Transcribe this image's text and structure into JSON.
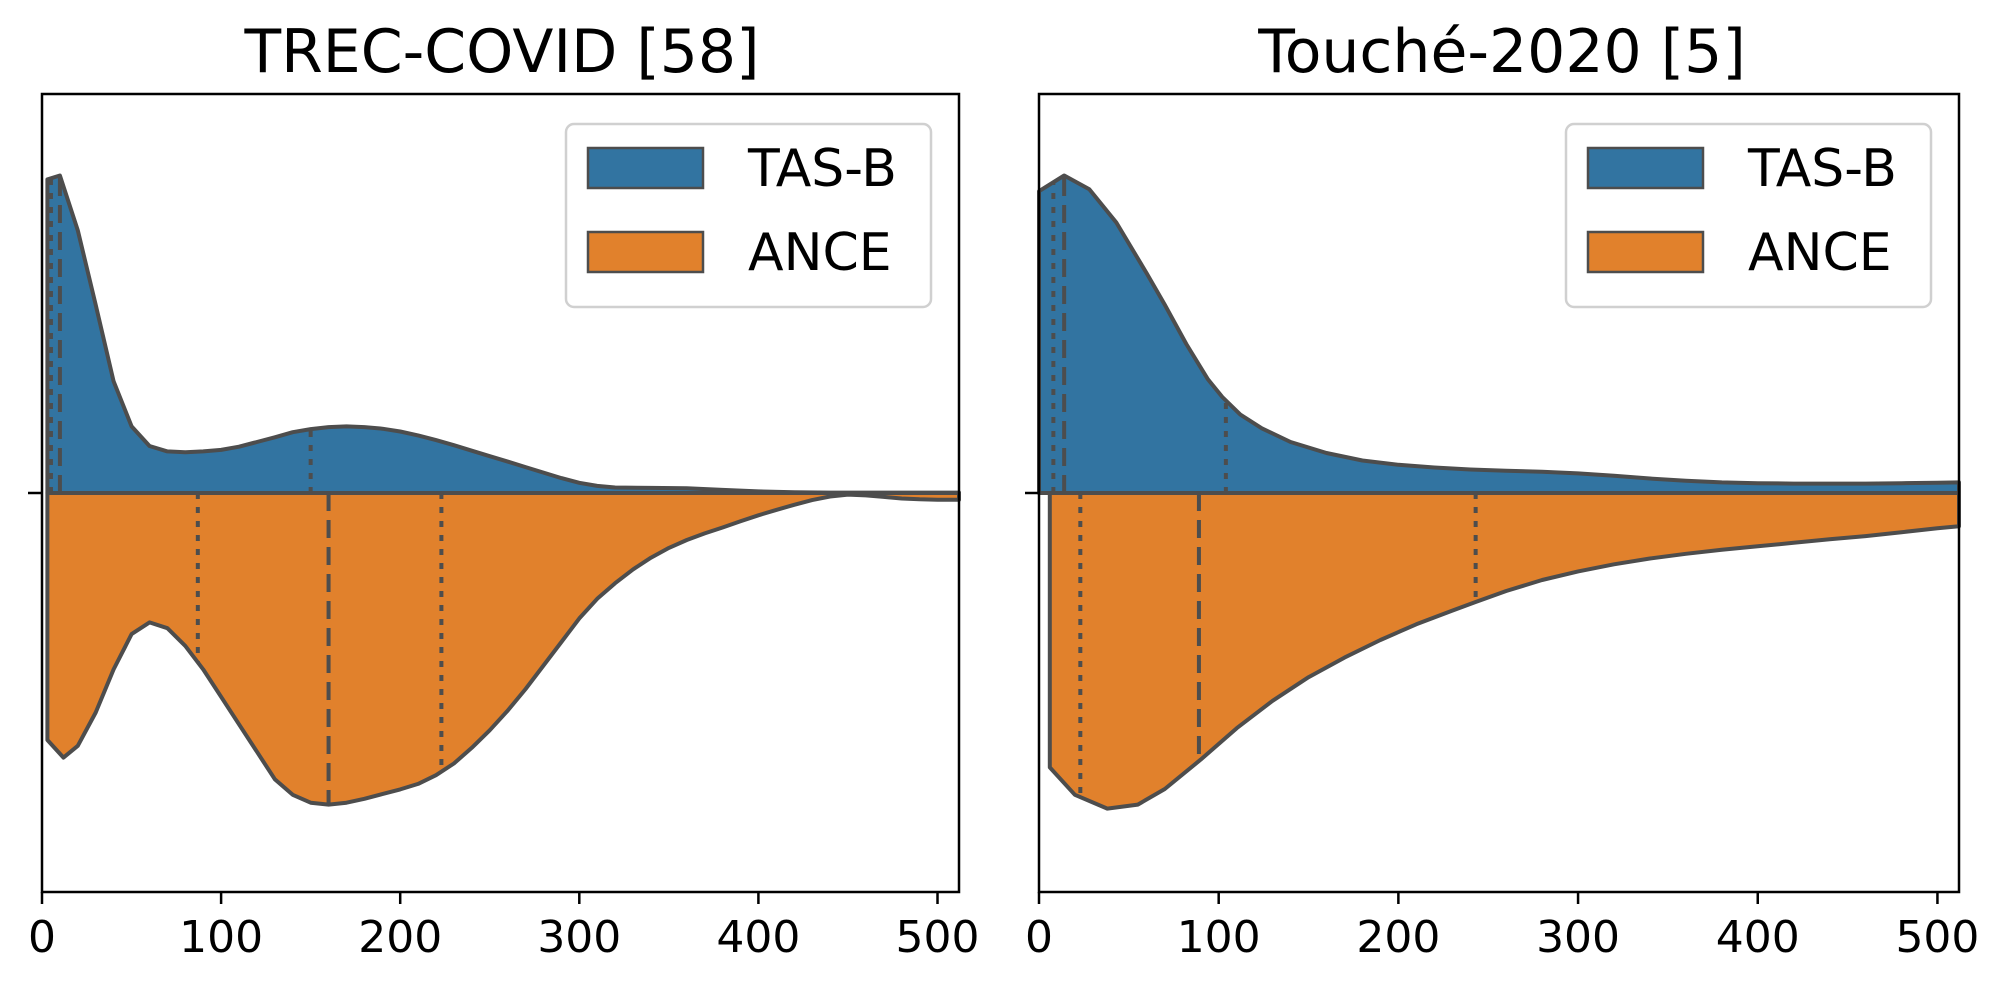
{
  "chart_data": [
    {
      "type": "violin",
      "title": "TREC-COVID [58]",
      "xlabel": "",
      "ylabel": "",
      "xlim": [
        0,
        512
      ],
      "xticks": [
        0,
        100,
        200,
        300,
        400,
        500
      ],
      "legend": {
        "placement": "top-right",
        "entries": [
          "TAS-B",
          "ANCE"
        ]
      },
      "series": [
        {
          "name": "TAS-B",
          "side": "upper",
          "color": "#3274a1",
          "density": [
            [
              3,
              0.8
            ],
            [
              10,
              0.81
            ],
            [
              20,
              0.67
            ],
            [
              30,
              0.48
            ],
            [
              40,
              0.285
            ],
            [
              50,
              0.17
            ],
            [
              60,
              0.12
            ],
            [
              70,
              0.106
            ],
            [
              80,
              0.104
            ],
            [
              90,
              0.106
            ],
            [
              100,
              0.11
            ],
            [
              110,
              0.118
            ],
            [
              120,
              0.13
            ],
            [
              130,
              0.142
            ],
            [
              140,
              0.155
            ],
            [
              150,
              0.163
            ],
            [
              160,
              0.168
            ],
            [
              170,
              0.17
            ],
            [
              180,
              0.168
            ],
            [
              190,
              0.164
            ],
            [
              200,
              0.157
            ],
            [
              210,
              0.147
            ],
            [
              220,
              0.135
            ],
            [
              230,
              0.122
            ],
            [
              240,
              0.108
            ],
            [
              250,
              0.094
            ],
            [
              260,
              0.08
            ],
            [
              270,
              0.066
            ],
            [
              280,
              0.052
            ],
            [
              290,
              0.038
            ],
            [
              300,
              0.026
            ],
            [
              310,
              0.018
            ],
            [
              320,
              0.014
            ],
            [
              340,
              0.013
            ],
            [
              360,
              0.012
            ],
            [
              380,
              0.008
            ],
            [
              400,
              0.004
            ],
            [
              420,
              0.002
            ],
            [
              440,
              0.001
            ],
            [
              460,
              0.001
            ],
            [
              480,
              0.001
            ],
            [
              500,
              0.001
            ],
            [
              512,
              0.001
            ]
          ],
          "quartiles": [
            5,
            10,
            150
          ]
        },
        {
          "name": "ANCE",
          "side": "lower",
          "color": "#e1812c",
          "density": [
            [
              3,
              0.63
            ],
            [
              12,
              0.675
            ],
            [
              20,
              0.645
            ],
            [
              30,
              0.56
            ],
            [
              40,
              0.45
            ],
            [
              50,
              0.36
            ],
            [
              60,
              0.33
            ],
            [
              70,
              0.345
            ],
            [
              80,
              0.39
            ],
            [
              90,
              0.45
            ],
            [
              100,
              0.52
            ],
            [
              110,
              0.59
            ],
            [
              120,
              0.66
            ],
            [
              130,
              0.73
            ],
            [
              140,
              0.77
            ],
            [
              150,
              0.79
            ],
            [
              160,
              0.795
            ],
            [
              170,
              0.79
            ],
            [
              180,
              0.78
            ],
            [
              190,
              0.768
            ],
            [
              200,
              0.756
            ],
            [
              210,
              0.742
            ],
            [
              220,
              0.72
            ],
            [
              230,
              0.69
            ],
            [
              240,
              0.65
            ],
            [
              250,
              0.605
            ],
            [
              260,
              0.555
            ],
            [
              270,
              0.5
            ],
            [
              280,
              0.44
            ],
            [
              290,
              0.38
            ],
            [
              300,
              0.32
            ],
            [
              310,
              0.27
            ],
            [
              320,
              0.23
            ],
            [
              330,
              0.195
            ],
            [
              340,
              0.165
            ],
            [
              350,
              0.14
            ],
            [
              360,
              0.12
            ],
            [
              370,
              0.103
            ],
            [
              380,
              0.088
            ],
            [
              390,
              0.072
            ],
            [
              400,
              0.057
            ],
            [
              410,
              0.043
            ],
            [
              420,
              0.03
            ],
            [
              430,
              0.018
            ],
            [
              440,
              0.009
            ],
            [
              450,
              0.004
            ],
            [
              460,
              0.006
            ],
            [
              470,
              0.01
            ],
            [
              480,
              0.014
            ],
            [
              490,
              0.016
            ],
            [
              500,
              0.017
            ],
            [
              512,
              0.017
            ]
          ],
          "quartiles": [
            87,
            160,
            223
          ]
        }
      ]
    },
    {
      "type": "violin",
      "title": "Touché-2020 [5]",
      "xlabel": "",
      "ylabel": "",
      "xlim": [
        0,
        512
      ],
      "xticks": [
        0,
        100,
        200,
        300,
        400,
        500
      ],
      "legend": {
        "placement": "top-right",
        "entries": [
          "TAS-B",
          "ANCE"
        ]
      },
      "series": [
        {
          "name": "TAS-B",
          "side": "upper",
          "color": "#3274a1",
          "density": [
            [
              0,
              0.77
            ],
            [
              14,
              0.81
            ],
            [
              28,
              0.775
            ],
            [
              43,
              0.69
            ],
            [
              60,
              0.56
            ],
            [
              70,
              0.48
            ],
            [
              82,
              0.38
            ],
            [
              94,
              0.29
            ],
            [
              102,
              0.245
            ],
            [
              112,
              0.2
            ],
            [
              124,
              0.165
            ],
            [
              140,
              0.13
            ],
            [
              160,
              0.102
            ],
            [
              180,
              0.083
            ],
            [
              200,
              0.072
            ],
            [
              220,
              0.065
            ],
            [
              240,
              0.06
            ],
            [
              260,
              0.057
            ],
            [
              280,
              0.054
            ],
            [
              300,
              0.05
            ],
            [
              320,
              0.044
            ],
            [
              340,
              0.037
            ],
            [
              360,
              0.031
            ],
            [
              380,
              0.027
            ],
            [
              400,
              0.025
            ],
            [
              420,
              0.024
            ],
            [
              440,
              0.024
            ],
            [
              460,
              0.024
            ],
            [
              480,
              0.025
            ],
            [
              500,
              0.026
            ],
            [
              512,
              0.027
            ]
          ],
          "quartiles": [
            8,
            14,
            104
          ]
        },
        {
          "name": "ANCE",
          "side": "lower",
          "color": "#e1812c",
          "density": [
            [
              6,
              0.7
            ],
            [
              20,
              0.77
            ],
            [
              38,
              0.805
            ],
            [
              55,
              0.795
            ],
            [
              70,
              0.755
            ],
            [
              90,
              0.68
            ],
            [
              110,
              0.6
            ],
            [
              130,
              0.53
            ],
            [
              150,
              0.47
            ],
            [
              170,
              0.42
            ],
            [
              190,
              0.375
            ],
            [
              210,
              0.335
            ],
            [
              230,
              0.3
            ],
            [
              243,
              0.278
            ],
            [
              260,
              0.25
            ],
            [
              280,
              0.222
            ],
            [
              300,
              0.2
            ],
            [
              320,
              0.182
            ],
            [
              340,
              0.167
            ],
            [
              360,
              0.155
            ],
            [
              380,
              0.145
            ],
            [
              400,
              0.136
            ],
            [
              420,
              0.127
            ],
            [
              440,
              0.118
            ],
            [
              460,
              0.11
            ],
            [
              480,
              0.1
            ],
            [
              500,
              0.09
            ],
            [
              512,
              0.085
            ]
          ],
          "quartiles": [
            23,
            89,
            243
          ]
        }
      ]
    }
  ]
}
